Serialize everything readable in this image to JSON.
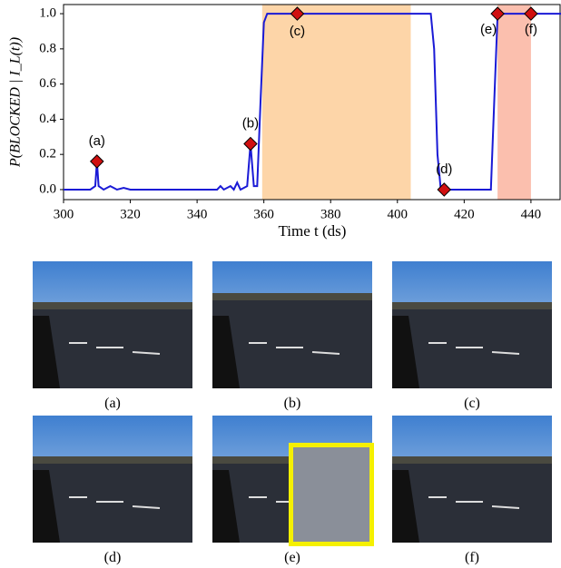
{
  "chart_data": {
    "type": "line",
    "y_label": "P(BLOCKED | I_L(t))",
    "x_label": "Time t (ds)",
    "color": "#1a1ad6",
    "x": [
      300,
      308,
      309.5,
      310,
      310.5,
      312,
      314,
      316,
      318,
      320,
      346,
      347,
      348,
      350,
      351,
      352,
      353,
      355,
      356,
      357,
      358,
      359,
      360,
      361,
      410,
      411,
      412,
      413,
      414,
      428,
      429,
      430,
      431,
      449
    ],
    "values": [
      0.0,
      0.0,
      0.02,
      0.16,
      0.02,
      0.0,
      0.02,
      0.0,
      0.01,
      0.0,
      0.0,
      0.02,
      0.0,
      0.02,
      0.0,
      0.04,
      0.0,
      0.02,
      0.26,
      0.02,
      0.02,
      0.5,
      0.95,
      1.0,
      1.0,
      0.8,
      0.2,
      0.0,
      0.0,
      0.0,
      0.5,
      0.99,
      1.0,
      1.0
    ],
    "xlim": [
      300,
      449
    ],
    "ylim": [
      -0.057,
      1.052
    ],
    "xticks": [
      300,
      320,
      340,
      360,
      380,
      400,
      420,
      440
    ],
    "yticks": [
      {
        "value": 0,
        "label": "0.0"
      },
      0.2,
      0.4,
      0.6,
      0.8,
      {
        "value": 1,
        "label": "1.0"
      }
    ],
    "spans": [
      {
        "x0": 359.5,
        "x1": 404,
        "color": "#fdd5a8"
      },
      {
        "x0": 430,
        "x1": 440,
        "color": "#fbbfae"
      }
    ],
    "annotations": [
      {
        "label": "(a)",
        "x": 310,
        "y": 0.16
      },
      {
        "label": "(b)",
        "x": 356,
        "y": 0.26
      },
      {
        "label": "(c)",
        "x": 370,
        "y": 1.0
      },
      {
        "label": "(d)",
        "x": 414,
        "y": 0.0
      },
      {
        "label": "(e)",
        "x": 430,
        "y": 1.0
      },
      {
        "label": "(f)",
        "x": 440,
        "y": 1.0
      }
    ],
    "marker_color": "#d01010"
  },
  "panels": [
    {
      "caption": "(a)"
    },
    {
      "caption": "(b)"
    },
    {
      "caption": "(c)"
    },
    {
      "caption": "(d)"
    },
    {
      "caption": "(e)"
    },
    {
      "caption": "(f)"
    }
  ]
}
